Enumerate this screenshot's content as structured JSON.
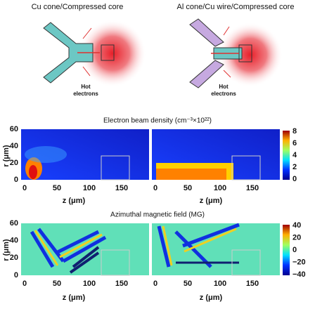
{
  "header": {
    "left_title": "Cu cone/Compressed core",
    "right_title": "Al cone/Cu wire/Compressed core"
  },
  "schematics": {
    "left_label": [
      "Hot",
      "electrons"
    ],
    "right_label": [
      "Hot",
      "electrons"
    ]
  },
  "density": {
    "title": "Electron beam density (cm⁻³×10²²)",
    "y_label": "r (μm)",
    "x_label": "z (μm)",
    "y_ticks": [
      "60",
      "40",
      "20",
      "0"
    ],
    "x_ticks": [
      "0",
      "50",
      "100",
      "150"
    ],
    "colorbar_ticks": [
      "8",
      "6",
      "4",
      "2",
      "0"
    ]
  },
  "field": {
    "title": "Azimuthal magnetic field (MG)",
    "y_label": "r (μm)",
    "x_label": "z (μm)",
    "y_ticks": [
      "60",
      "40",
      "20",
      "0"
    ],
    "x_ticks": [
      "0",
      "50",
      "100",
      "150"
    ],
    "colorbar_ticks": [
      "40",
      "20",
      "0",
      "−20",
      "−40"
    ]
  }
}
